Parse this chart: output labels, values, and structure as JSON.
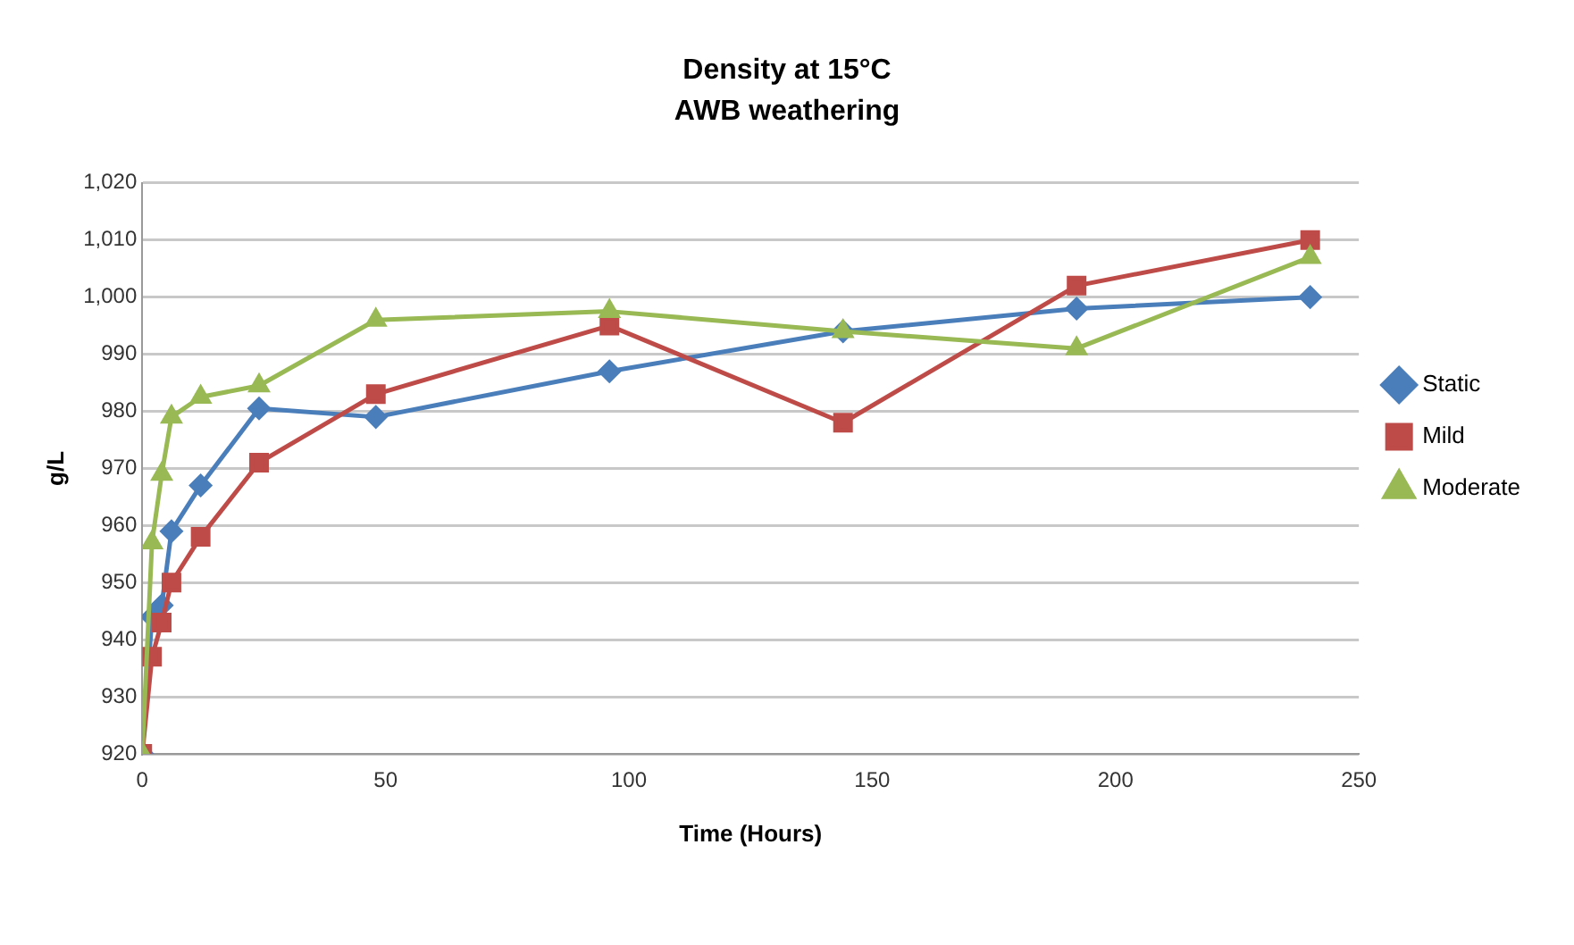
{
  "chart_data": {
    "type": "line",
    "title": "Density at 15°C",
    "subtitle": "AWB weathering",
    "xlabel": "Time (Hours)",
    "ylabel": "g/L",
    "x": [
      0,
      2,
      4,
      6,
      12,
      24,
      48,
      96,
      144,
      192,
      240
    ],
    "series": [
      {
        "name": "Static",
        "color": "#4a7ebb",
        "marker": "diamond",
        "values": [
          920,
          944,
          946,
          959,
          967,
          980.5,
          979,
          987,
          994,
          998,
          1000
        ]
      },
      {
        "name": "Mild",
        "color": "#be4b48",
        "marker": "square",
        "values": [
          920,
          937,
          943,
          950,
          958,
          971,
          983,
          995,
          978,
          1002,
          1010
        ]
      },
      {
        "name": "Moderate",
        "color": "#98b954",
        "marker": "triangle",
        "values": [
          920,
          957,
          969,
          979,
          982.5,
          984.5,
          996,
          997.5,
          994,
          991,
          1007
        ]
      }
    ],
    "xlim": [
      0,
      250
    ],
    "xticks": [
      0,
      50,
      100,
      150,
      200,
      250
    ],
    "ylim": [
      920,
      1020
    ],
    "yticks": [
      920,
      930,
      940,
      950,
      960,
      970,
      980,
      990,
      {
        "value": 1000,
        "label": "1,000"
      },
      {
        "value": 1010,
        "label": "1,010"
      },
      {
        "value": 1020,
        "label": "1,020"
      }
    ],
    "grid": "y",
    "legend": "right"
  }
}
